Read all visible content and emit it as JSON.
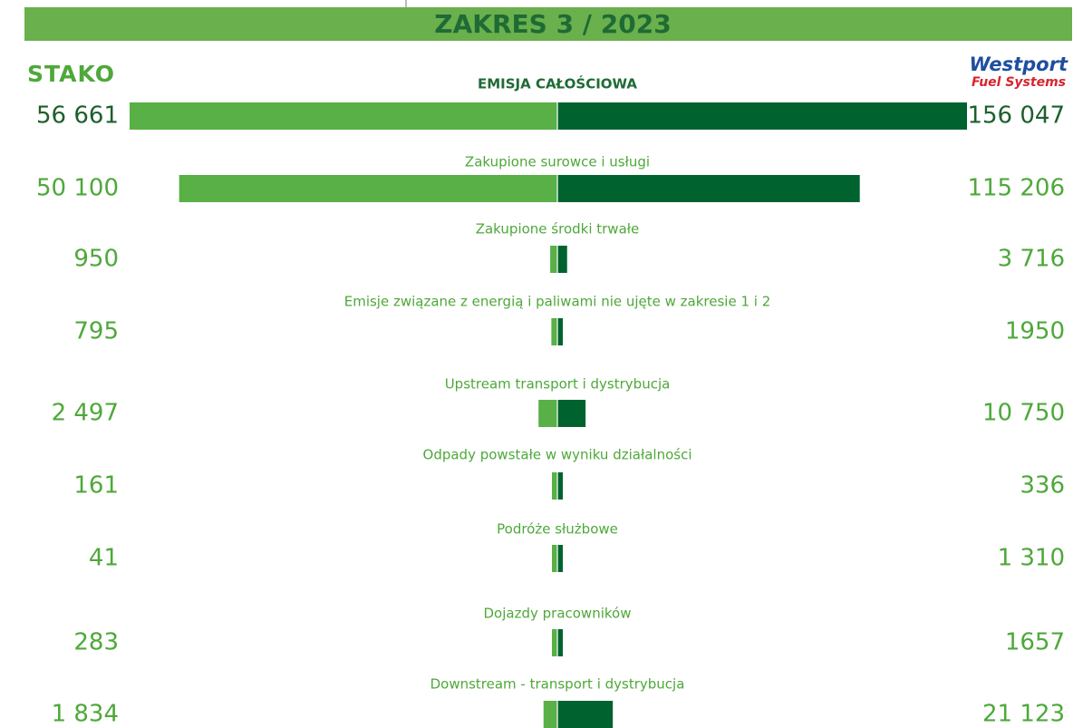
{
  "chart_data": {
    "type": "butterfly",
    "title": "ZAKRES 3 / 2023",
    "categories": [
      "EMISJA CAŁOŚCIOWA",
      "Zakupione surowce i usługi",
      "Zakupione środki trwałe",
      "Emisje związane z energią i paliwami nie ujęte w zakresie 1 i 2",
      "Upstream transport i dystrybucja",
      "Odpady powstałe w wyniku działalności",
      "Podróże służbowe",
      "Dojazdy pracowników",
      "Downstream - transport i dystrybucja"
    ],
    "series": [
      {
        "name": "STAKO",
        "color": "#58b046",
        "values": [
          56661,
          50100,
          950,
          795,
          2497,
          161,
          41,
          283,
          1834
        ],
        "value_labels": [
          "56 661",
          "50 100",
          "950",
          "795",
          "2 497",
          "161",
          "41",
          "283",
          "1 834"
        ]
      },
      {
        "name": "Westport",
        "tagline": "Fuel Systems",
        "color": "#00632f",
        "values": [
          156047,
          115206,
          3716,
          1950,
          10750,
          336,
          1310,
          1657,
          21123
        ],
        "value_labels": [
          "156 047",
          "115 206",
          "3 716",
          "1950",
          "10 750",
          "336",
          "1 310",
          "1657",
          "21 123"
        ]
      }
    ]
  }
}
